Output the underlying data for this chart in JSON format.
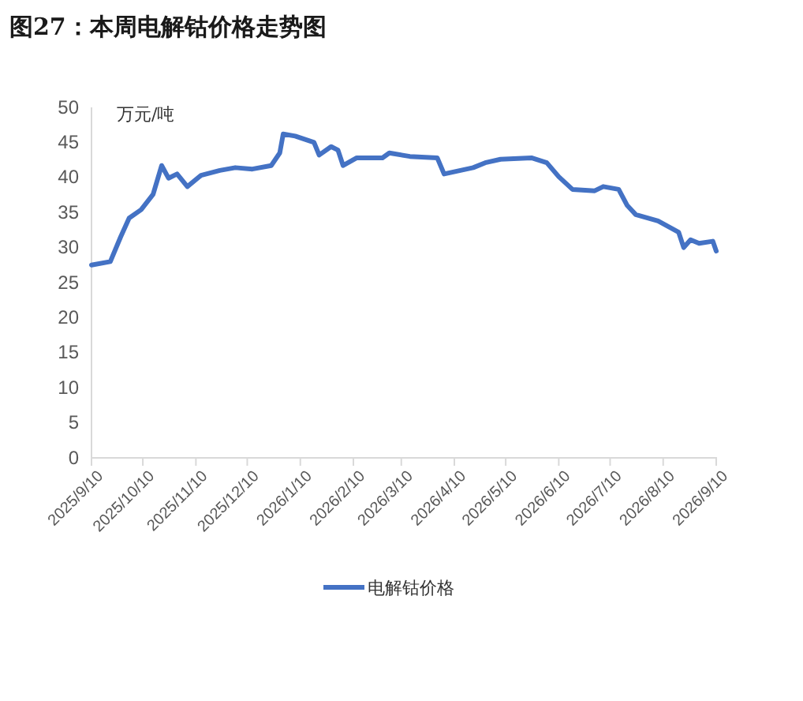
{
  "chart_data": {
    "type": "line",
    "title": "图27：本周电解钴价格走势图",
    "ylabel": "万元/吨",
    "x": [
      "2025-09-10",
      "2025-09-21",
      "2025-09-27",
      "2025-10-02",
      "2025-10-09",
      "2025-10-16",
      "2025-10-21",
      "2025-10-25",
      "2025-10-30",
      "2025-11-05",
      "2025-11-13",
      "2025-11-24",
      "2025-12-03",
      "2025-12-13",
      "2025-12-24",
      "2025-12-29",
      "2025-12-31",
      "2026-01-07",
      "2026-01-18",
      "2026-01-21",
      "2026-01-28",
      "2026-02-01",
      "2026-02-04",
      "2026-02-12",
      "2026-02-27",
      "2026-03-03",
      "2026-03-15",
      "2026-03-31",
      "2026-04-04",
      "2026-04-21",
      "2026-04-28",
      "2026-05-07",
      "2026-05-25",
      "2026-06-03",
      "2026-06-10",
      "2026-06-18",
      "2026-07-01",
      "2026-07-06",
      "2026-07-15",
      "2026-07-20",
      "2026-07-25",
      "2026-08-07",
      "2026-08-19",
      "2026-08-22",
      "2026-08-26",
      "2026-08-31",
      "2026-09-08",
      "2026-09-10"
    ],
    "series": [
      {
        "name": "电解钴价格",
        "color": "#4472c4",
        "values": [
          27.5,
          28,
          31.5,
          34.2,
          35.4,
          37.6,
          41.7,
          39.9,
          40.5,
          38.7,
          40.3,
          41,
          41.4,
          41.2,
          41.7,
          43.5,
          46.2,
          45.9,
          45,
          43.2,
          44.4,
          43.9,
          41.7,
          42.8,
          42.8,
          43.5,
          43,
          42.8,
          40.5,
          41.4,
          42.1,
          42.6,
          42.8,
          42.1,
          40.1,
          38.3,
          38.1,
          38.7,
          38.3,
          36,
          34.7,
          33.8,
          32.2,
          30,
          31.1,
          30.6,
          30.9,
          29.5
        ]
      }
    ],
    "xlim": [
      "2025-09-10",
      "2026-09-10"
    ],
    "xticks": [
      {
        "value": "2025-09-10",
        "label": "2025/9/10"
      },
      {
        "value": "2025-10-10",
        "label": "2025/10/10"
      },
      {
        "value": "2025-11-10",
        "label": "2025/11/10"
      },
      {
        "value": "2025-12-10",
        "label": "2025/12/10"
      },
      {
        "value": "2026-01-10",
        "label": "2026/1/10"
      },
      {
        "value": "2026-02-10",
        "label": "2026/2/10"
      },
      {
        "value": "2026-03-10",
        "label": "2026/3/10"
      },
      {
        "value": "2026-04-10",
        "label": "2026/4/10"
      },
      {
        "value": "2026-05-10",
        "label": "2026/5/10"
      },
      {
        "value": "2026-06-10",
        "label": "2026/6/10"
      },
      {
        "value": "2026-07-10",
        "label": "2026/7/10"
      },
      {
        "value": "2026-08-10",
        "label": "2026/8/10"
      },
      {
        "value": "2026-09-10",
        "label": "2026/9/10"
      }
    ],
    "ylim": [
      0,
      50
    ],
    "yticks": [
      0,
      5,
      10,
      15,
      20,
      25,
      30,
      35,
      40,
      45,
      50
    ],
    "grid": false,
    "legend": "bottom",
    "marker": "none",
    "line_style": "solid"
  }
}
